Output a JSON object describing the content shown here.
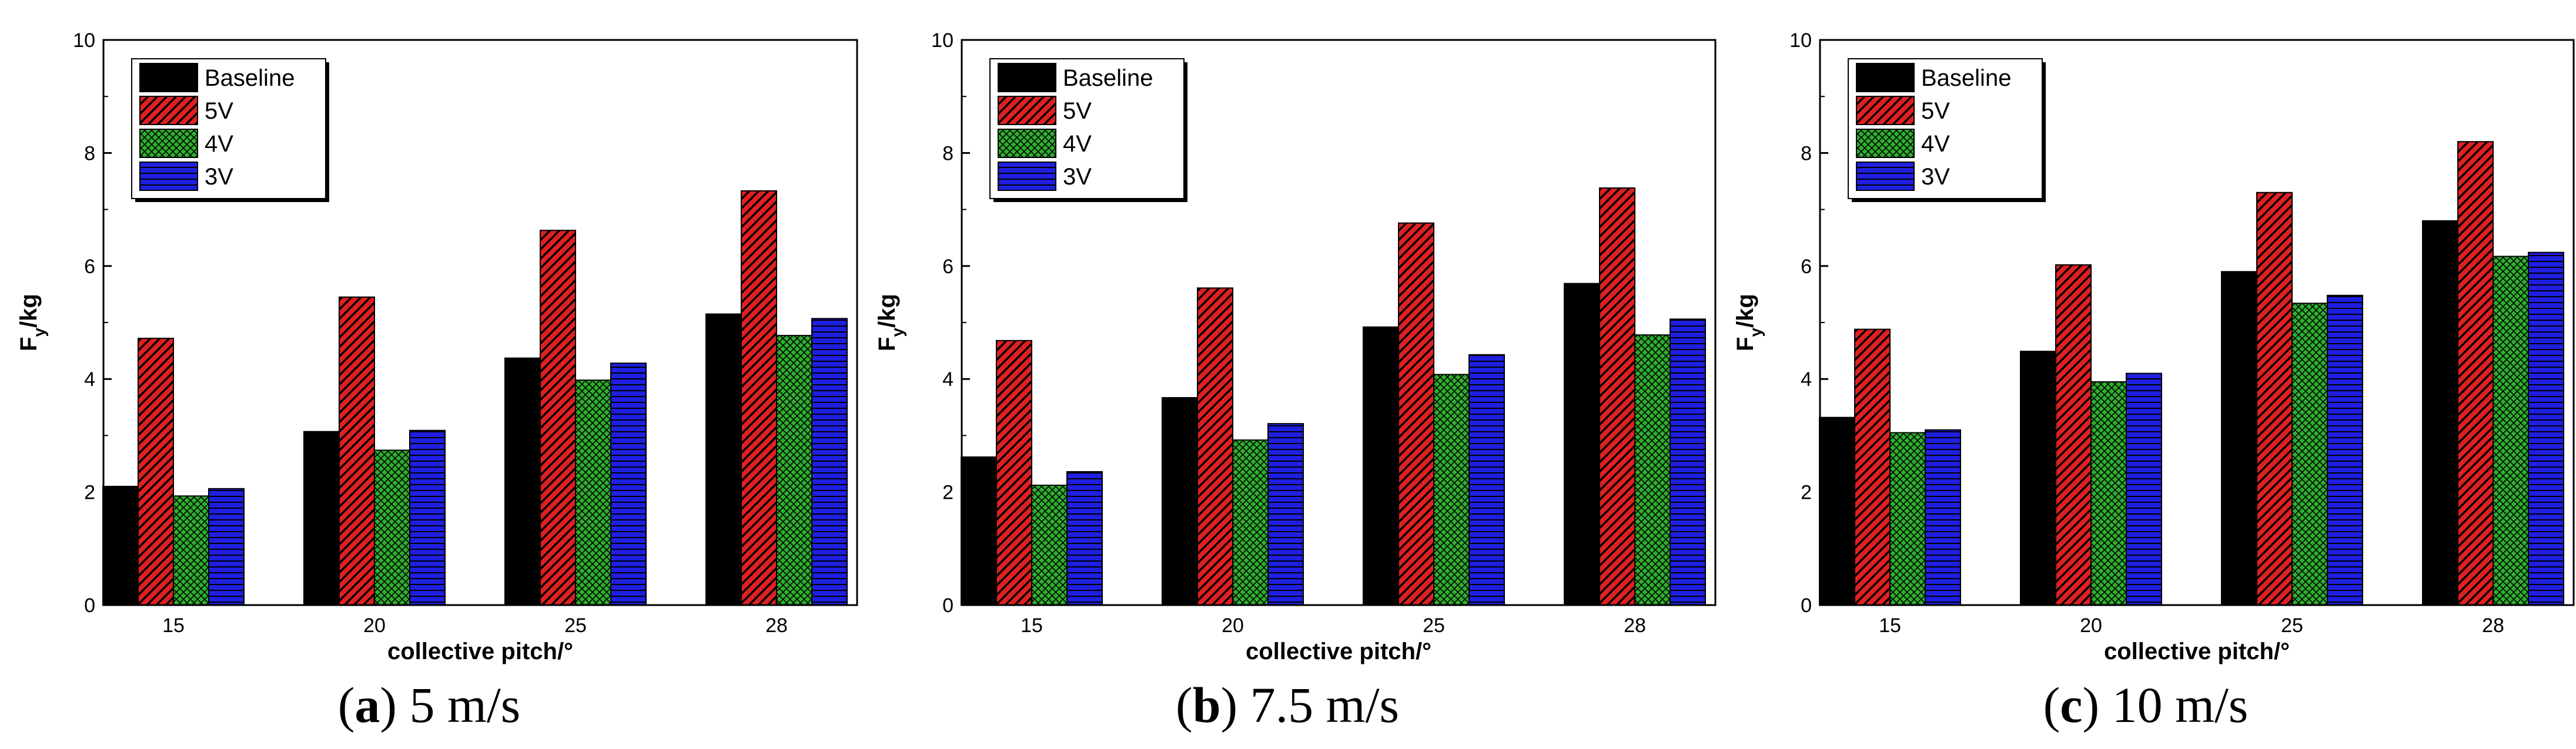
{
  "figure": {
    "panels": [
      {
        "letter": "a",
        "caption": "5 m/s"
      },
      {
        "letter": "b",
        "caption": "7.5 m/s"
      },
      {
        "letter": "c",
        "caption": "10 m/s"
      }
    ]
  },
  "styles": {
    "Baseline": {
      "color": "#000000",
      "pattern": "solid"
    },
    "5V": {
      "color": "#e02020",
      "pattern": "diagonal"
    },
    "4V": {
      "color": "#2fae2f",
      "pattern": "crosshatch"
    },
    "3V": {
      "color": "#1f1fe0",
      "pattern": "horizontal"
    }
  },
  "chart_data": [
    {
      "type": "bar",
      "title": "(a) 5 m/s",
      "xlabel": "collective pitch/°",
      "ylabel_main": "F",
      "ylabel_sub": "y",
      "ylabel_unit": "/kg",
      "ylim": [
        0,
        10
      ],
      "yticks": [
        0,
        2,
        4,
        6,
        8,
        10
      ],
      "categories": [
        "15",
        "20",
        "25",
        "28"
      ],
      "legend_position": "top-left",
      "series": [
        {
          "name": "Baseline",
          "values": [
            2.1,
            3.07,
            4.37,
            5.15
          ]
        },
        {
          "name": "5V",
          "values": [
            4.72,
            5.45,
            6.63,
            7.33
          ]
        },
        {
          "name": "4V",
          "values": [
            1.93,
            2.74,
            3.98,
            4.77
          ]
        },
        {
          "name": "3V",
          "values": [
            2.06,
            3.09,
            4.28,
            5.07
          ]
        }
      ]
    },
    {
      "type": "bar",
      "title": "(b) 7.5 m/s",
      "xlabel": "collective pitch/°",
      "ylabel_main": "F",
      "ylabel_sub": "y",
      "ylabel_unit": "/kg",
      "ylim": [
        0,
        10
      ],
      "yticks": [
        0,
        2,
        4,
        6,
        8,
        10
      ],
      "categories": [
        "15",
        "20",
        "25",
        "28"
      ],
      "legend_position": "top-left",
      "series": [
        {
          "name": "Baseline",
          "values": [
            2.62,
            3.67,
            4.92,
            5.69
          ]
        },
        {
          "name": "5V",
          "values": [
            4.68,
            5.61,
            6.76,
            7.38
          ]
        },
        {
          "name": "4V",
          "values": [
            2.12,
            2.92,
            4.08,
            4.78
          ]
        },
        {
          "name": "3V",
          "values": [
            2.36,
            3.21,
            4.43,
            5.06
          ]
        }
      ]
    },
    {
      "type": "bar",
      "title": "(c) 10 m/s",
      "xlabel": "collective pitch/°",
      "ylabel_main": "F",
      "ylabel_sub": "y",
      "ylabel_unit": "/kg",
      "ylim": [
        0,
        10
      ],
      "yticks": [
        0,
        2,
        4,
        6,
        8,
        10
      ],
      "categories": [
        "15",
        "20",
        "25",
        "28"
      ],
      "legend_position": "top-left",
      "series": [
        {
          "name": "Baseline",
          "values": [
            3.32,
            4.49,
            5.9,
            6.8
          ]
        },
        {
          "name": "5V",
          "values": [
            4.88,
            6.02,
            7.3,
            8.2
          ]
        },
        {
          "name": "4V",
          "values": [
            3.05,
            3.95,
            5.34,
            6.17
          ]
        },
        {
          "name": "3V",
          "values": [
            3.1,
            4.1,
            5.48,
            6.24
          ]
        }
      ]
    }
  ]
}
